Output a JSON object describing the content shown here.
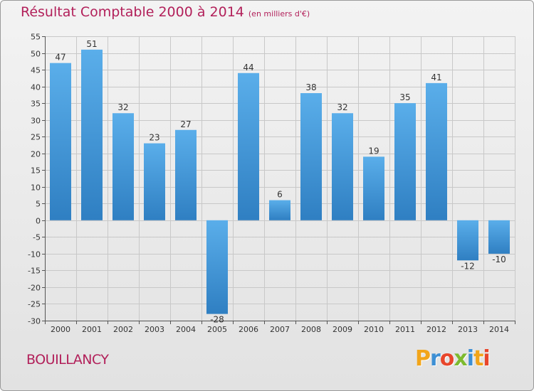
{
  "header": {
    "title": "Résultat Comptable 2000 à 2014",
    "unit": "(en milliers d'€)"
  },
  "footer": {
    "commune": "BOUILLANCY",
    "logo_letters": [
      "P",
      "r",
      "o",
      "x",
      "i",
      "t",
      "i"
    ],
    "logo_colors": [
      "#f2a51a",
      "#3d8fd4",
      "#e8462b",
      "#7dba2f",
      "#3d8fd4",
      "#f2a51a",
      "#e8462b"
    ]
  },
  "chart_data": {
    "type": "bar",
    "title": "Résultat Comptable 2000 à 2014",
    "subtitle": "(en milliers d'€)",
    "xlabel": "",
    "ylabel": "",
    "categories": [
      "2000",
      "2001",
      "2002",
      "2003",
      "2004",
      "2005",
      "2006",
      "2007",
      "2008",
      "2009",
      "2010",
      "2011",
      "2012",
      "2013",
      "2014"
    ],
    "values": [
      47,
      51,
      32,
      23,
      27,
      -28,
      44,
      6,
      38,
      32,
      19,
      35,
      41,
      -12,
      -10
    ],
    "data_labels": [
      "47",
      "51",
      "32",
      "23",
      "27",
      "-28",
      "44",
      "6",
      "38",
      "32",
      "19",
      "35",
      "41",
      "-12",
      "-10"
    ],
    "ylim": [
      -30,
      55
    ],
    "yticks": [
      55,
      50,
      45,
      40,
      35,
      30,
      25,
      20,
      15,
      10,
      5,
      0,
      -5,
      -10,
      -15,
      -20,
      -25,
      -30
    ],
    "ytick_labels": [
      "55",
      "50",
      "45",
      "40",
      "35",
      "30",
      "25",
      "20",
      "15",
      "10",
      "5",
      "0",
      "-5",
      "-10",
      "-15",
      "-20",
      "-25",
      "-30"
    ],
    "grid": true,
    "colors": {
      "bar_light": "#5aaeea",
      "bar_dark": "#2f7fc2",
      "grid": "#c8c8c8",
      "text": "#333333"
    }
  }
}
